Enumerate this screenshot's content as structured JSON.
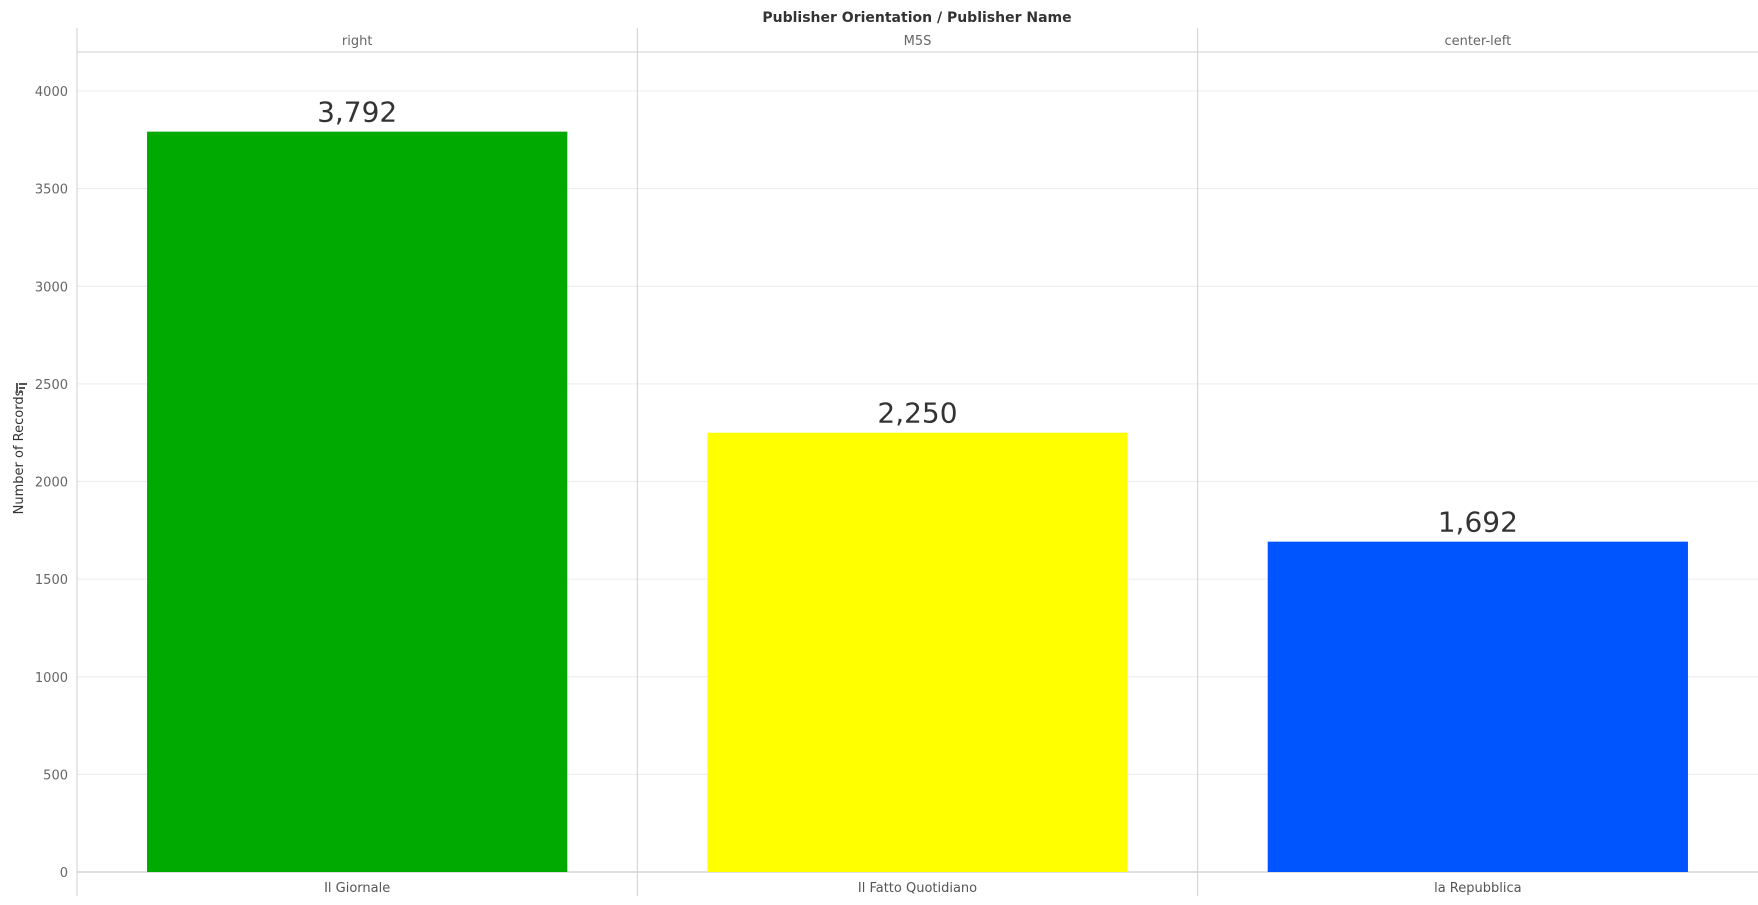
{
  "chart_data": {
    "type": "bar",
    "header_title": "Publisher Orientation / Publisher Name",
    "ylabel": "Number of Records",
    "ylim": [
      0,
      4200
    ],
    "yticks": [
      0,
      500,
      1000,
      1500,
      2000,
      2500,
      3000,
      3500,
      4000
    ],
    "grid": true,
    "legend": "none",
    "panes": [
      {
        "orientation": "right",
        "publisher": "Il Giornale",
        "value": 3792,
        "label": "3,792",
        "color": "#00AA00"
      },
      {
        "orientation": "M5S",
        "publisher": "Il Fatto Quotidiano",
        "value": 2250,
        "label": "2,250",
        "color": "#FFFF00"
      },
      {
        "orientation": "center-left",
        "publisher": "la Repubblica",
        "value": 1692,
        "label": "1,692",
        "color": "#0055FF"
      }
    ]
  }
}
